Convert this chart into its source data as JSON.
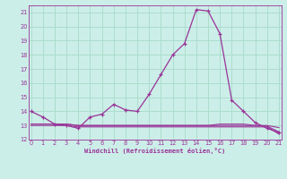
{
  "xlabel": "Windchill (Refroidissement éolien,°C)",
  "bg_color": "#cceee8",
  "grid_color": "#aaddcc",
  "line_color": "#993399",
  "x_main": [
    0,
    1,
    2,
    3,
    4,
    5,
    6,
    7,
    8,
    9,
    10,
    11,
    12,
    13,
    14,
    15,
    16,
    17,
    18,
    19,
    20,
    21
  ],
  "y_main": [
    14.0,
    13.6,
    13.1,
    13.0,
    12.8,
    13.6,
    13.8,
    14.5,
    14.1,
    14.0,
    15.2,
    16.6,
    18.0,
    18.8,
    21.2,
    21.1,
    19.5,
    14.8,
    14.0,
    13.2,
    12.8,
    12.5
  ],
  "y_flat1": [
    13.0,
    13.0,
    13.0,
    13.0,
    12.9,
    12.9,
    12.9,
    12.9,
    12.9,
    12.9,
    12.9,
    12.9,
    12.9,
    12.9,
    12.9,
    12.9,
    12.9,
    12.9,
    12.9,
    12.9,
    12.9,
    12.4
  ],
  "y_flat2": [
    13.1,
    13.1,
    13.1,
    13.1,
    13.0,
    13.0,
    13.0,
    13.0,
    13.0,
    13.0,
    13.0,
    13.0,
    13.0,
    13.0,
    13.0,
    13.0,
    13.0,
    13.0,
    13.0,
    13.0,
    12.95,
    12.55
  ],
  "y_flat3": [
    13.1,
    13.1,
    13.1,
    13.1,
    13.0,
    13.0,
    13.0,
    13.0,
    13.0,
    13.0,
    13.0,
    13.0,
    13.0,
    13.0,
    13.0,
    13.0,
    13.1,
    13.1,
    13.1,
    13.0,
    13.0,
    12.85
  ],
  "ylim": [
    12.0,
    21.5
  ],
  "xlim": [
    -0.2,
    21.2
  ],
  "yticks": [
    12,
    13,
    14,
    15,
    16,
    17,
    18,
    19,
    20,
    21
  ],
  "xticks": [
    0,
    1,
    2,
    3,
    4,
    5,
    6,
    7,
    8,
    9,
    10,
    11,
    12,
    13,
    14,
    15,
    16,
    17,
    18,
    19,
    20,
    21
  ]
}
